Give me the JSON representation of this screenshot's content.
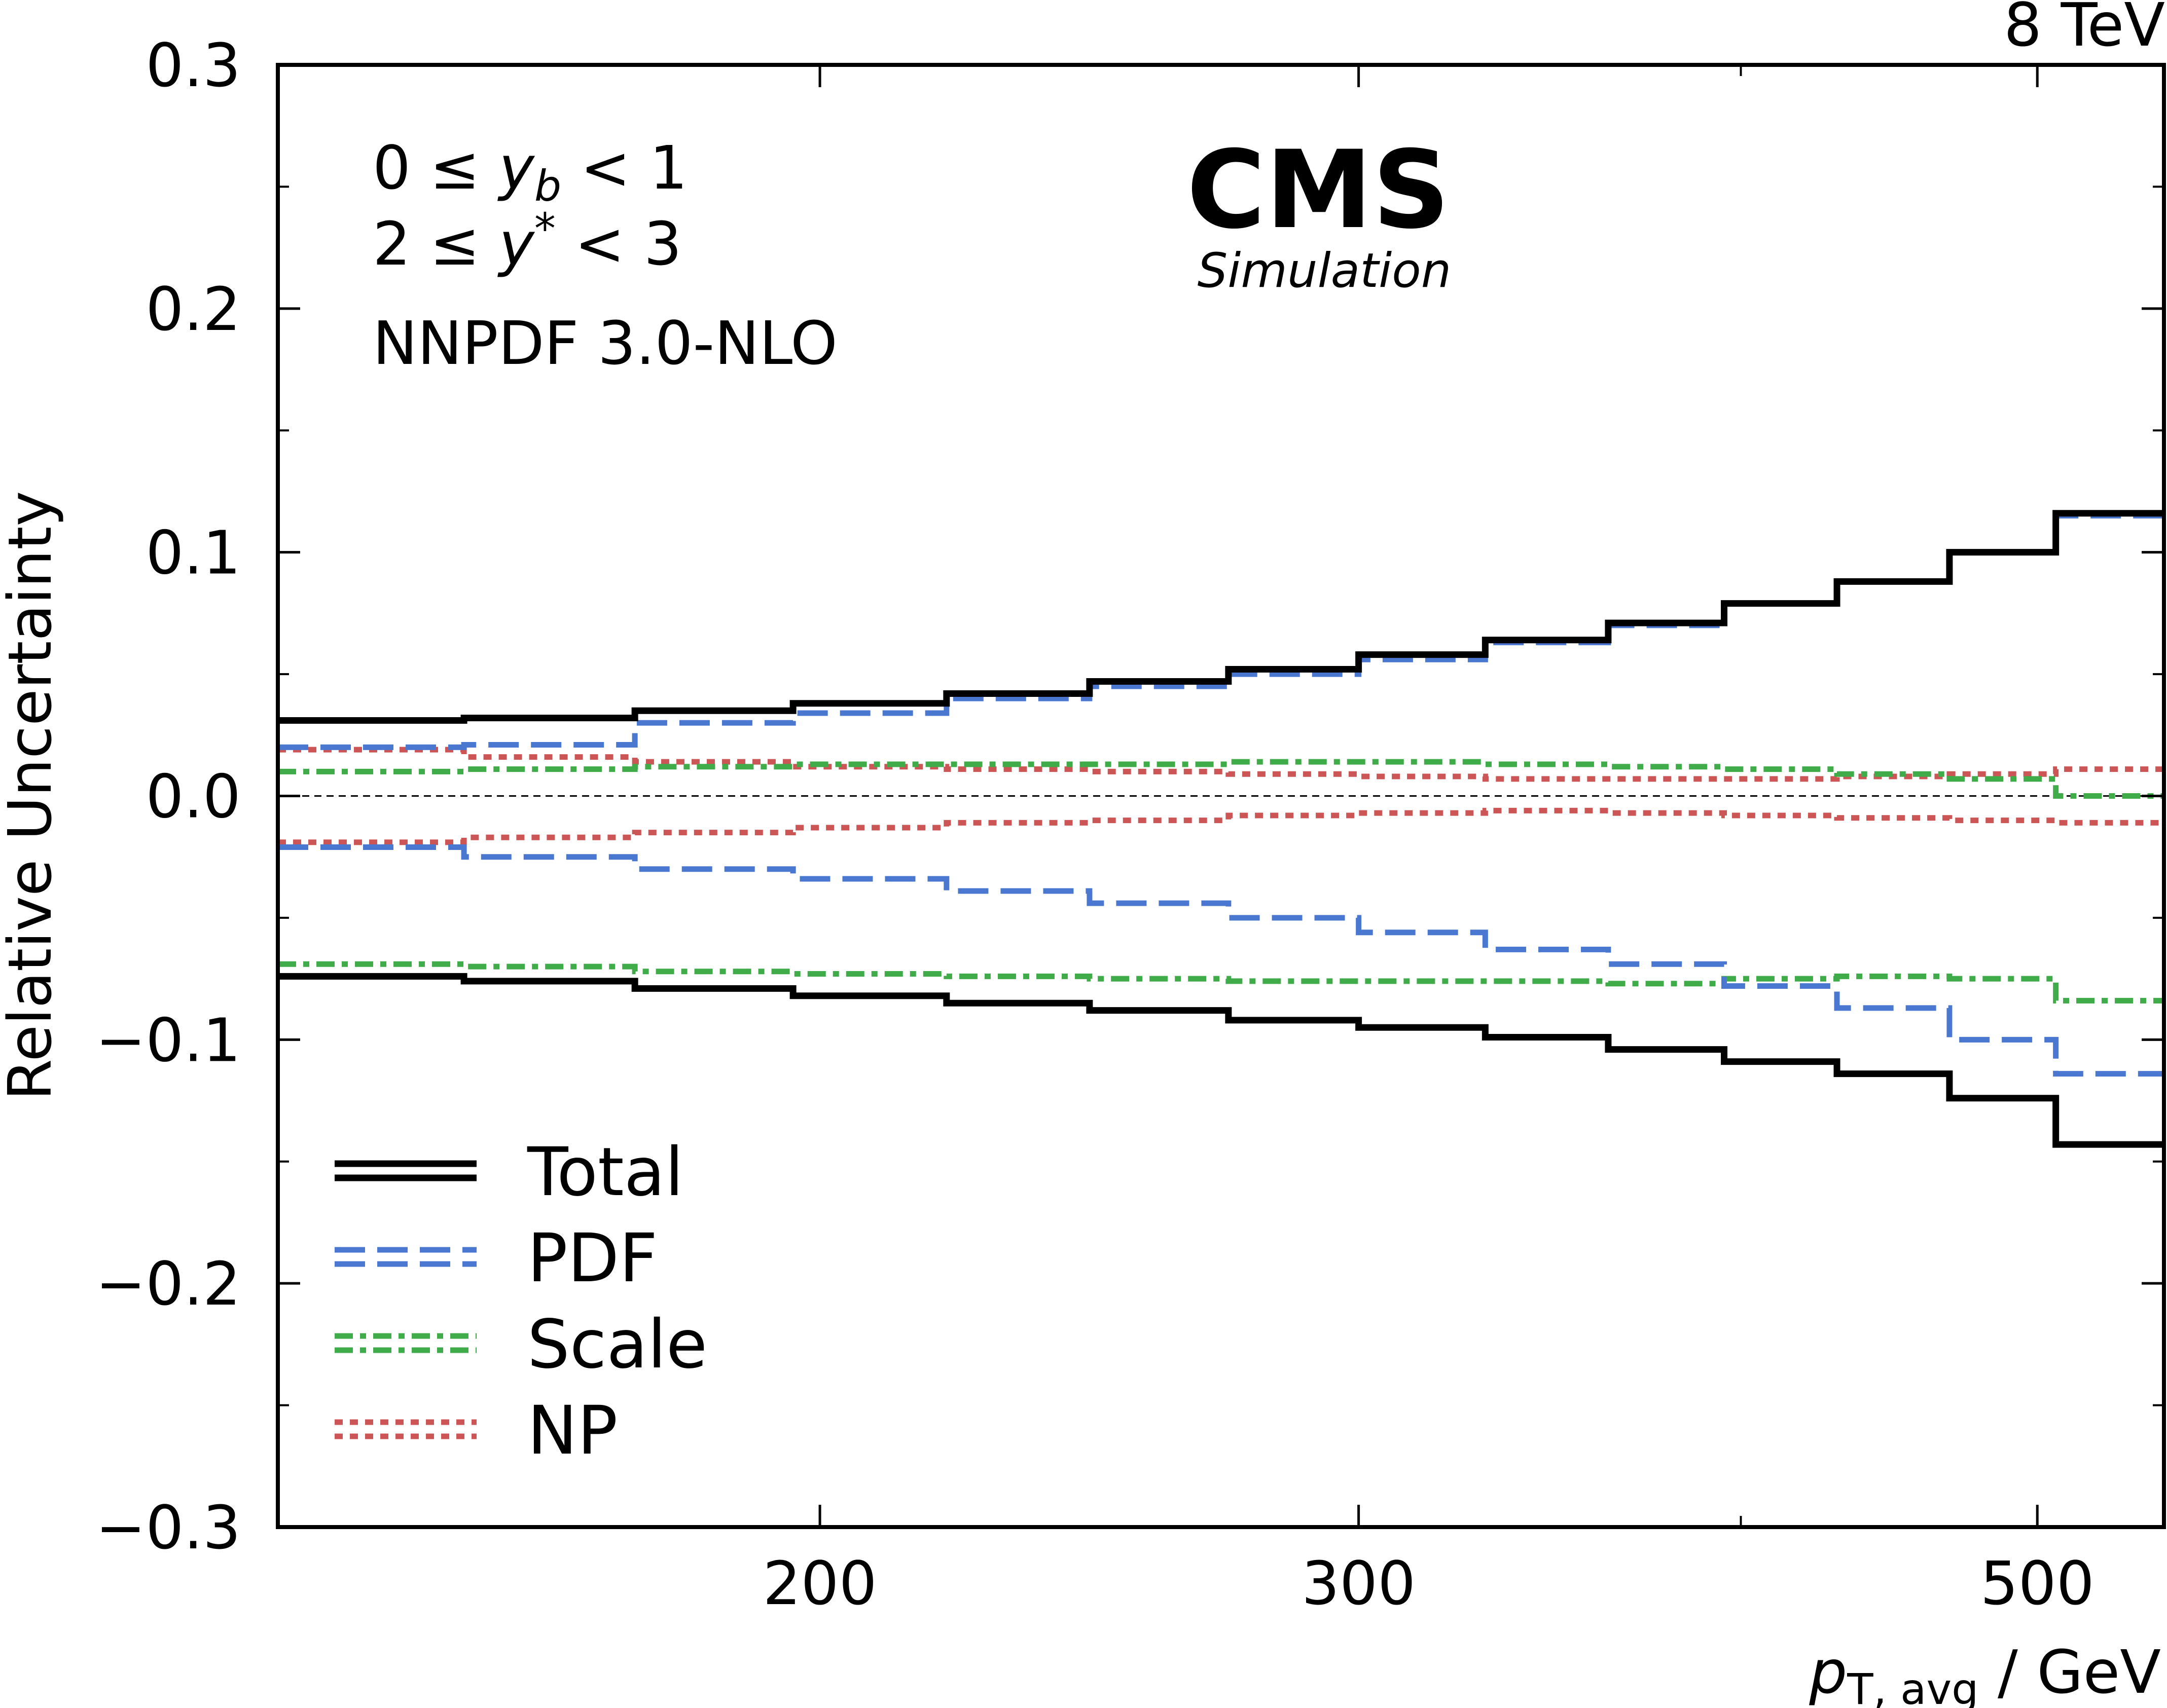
{
  "energy_label": "8 TeV",
  "experiment": "CMS",
  "status": "Simulation",
  "annotations": {
    "yb_range": "0 ≤ y_b < 1",
    "ystar_range": "2 ≤ y* < 3",
    "pdf_set": "NNPDF 3.0-NLO"
  },
  "chart_data": {
    "type": "line",
    "step": true,
    "xlabel": "p_T,avg / GeV",
    "ylabel": "Relative Uncertainty",
    "xscale": "log",
    "xlim": [
      133,
      550
    ],
    "ylim": [
      -0.3,
      0.3
    ],
    "xticks": [
      200,
      300,
      500
    ],
    "xtick_labels": [
      "200",
      "300",
      "500"
    ],
    "yticks": [
      -0.3,
      -0.2,
      -0.1,
      0.0,
      0.1,
      0.2,
      0.3
    ],
    "ytick_labels": [
      "−0.3",
      "−0.2",
      "−0.1",
      "0.0",
      "0.1",
      "0.2",
      "0.3"
    ],
    "grid": false,
    "legend_position": "lower-left",
    "bin_edges": [
      133,
      153,
      174,
      196,
      220,
      245,
      272,
      300,
      330,
      362,
      395,
      430,
      468,
      507,
      550
    ],
    "series": [
      {
        "name": "Total",
        "color": "#000000",
        "style": "solid",
        "up": [
          0.031,
          0.032,
          0.035,
          0.038,
          0.042,
          0.047,
          0.052,
          0.058,
          0.064,
          0.071,
          0.079,
          0.088,
          0.1,
          0.116
        ],
        "down": [
          -0.074,
          -0.076,
          -0.079,
          -0.082,
          -0.085,
          -0.088,
          -0.092,
          -0.095,
          -0.099,
          -0.104,
          -0.109,
          -0.114,
          -0.124,
          -0.143
        ]
      },
      {
        "name": "PDF",
        "color": "#4a78d0",
        "style": "dashed",
        "up": [
          0.02,
          0.021,
          0.03,
          0.034,
          0.04,
          0.045,
          0.05,
          0.056,
          0.063,
          0.07,
          0.079,
          0.088,
          0.1,
          0.115
        ],
        "down": [
          -0.021,
          -0.025,
          -0.03,
          -0.034,
          -0.039,
          -0.044,
          -0.05,
          -0.056,
          -0.063,
          -0.069,
          -0.078,
          -0.087,
          -0.1,
          -0.114
        ]
      },
      {
        "name": "Scale",
        "color": "#3fac49",
        "style": "dashdot",
        "up": [
          0.01,
          0.011,
          0.012,
          0.013,
          0.013,
          0.013,
          0.014,
          0.014,
          0.013,
          0.012,
          0.011,
          0.009,
          0.007,
          0.0
        ],
        "down": [
          -0.069,
          -0.07,
          -0.072,
          -0.073,
          -0.074,
          -0.075,
          -0.076,
          -0.076,
          -0.076,
          -0.077,
          -0.075,
          -0.074,
          -0.075,
          -0.084
        ]
      },
      {
        "name": "NP",
        "color": "#cc5555",
        "style": "dotted",
        "up": [
          0.019,
          0.016,
          0.014,
          0.012,
          0.011,
          0.01,
          0.009,
          0.008,
          0.007,
          0.007,
          0.007,
          0.008,
          0.009,
          0.011
        ],
        "down": [
          -0.019,
          -0.017,
          -0.015,
          -0.013,
          -0.011,
          -0.01,
          -0.008,
          -0.007,
          -0.006,
          -0.007,
          -0.008,
          -0.009,
          -0.01,
          -0.011
        ]
      }
    ]
  }
}
